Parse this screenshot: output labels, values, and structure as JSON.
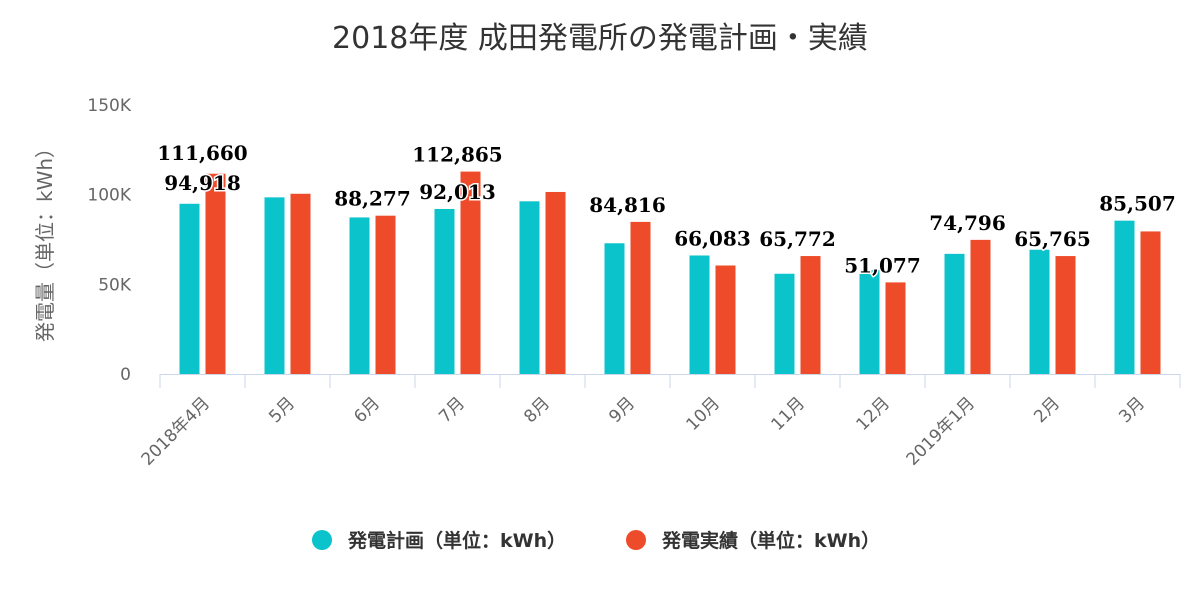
{
  "chart_data": {
    "type": "bar",
    "title": "2018年度 成田発電所の発電計画・実績",
    "xlabel": "",
    "ylabel": "発電量（単位：kWh）",
    "ylim": [
      0,
      150000
    ],
    "yticks": [
      0,
      50000,
      100000,
      150000
    ],
    "ytick_labels": [
      "0",
      "50K",
      "100K",
      "150K"
    ],
    "grid": false,
    "legend_position": "bottom",
    "categories": [
      "2018年4月",
      "5月",
      "6月",
      "7月",
      "8月",
      "9月",
      "10月",
      "11月",
      "12月",
      "2019年1月",
      "2月",
      "3月"
    ],
    "series": [
      {
        "name": "発電計画（単位：kWh）",
        "color": "#0ac3cb",
        "values": [
          94918,
          98500,
          87300,
          92013,
          96300,
          72900,
          66083,
          55900,
          58000,
          67000,
          69300,
          85507
        ]
      },
      {
        "name": "発電実績（単位：kWh）",
        "color": "#ee4b2b",
        "values": [
          111660,
          100500,
          88277,
          112865,
          101500,
          84816,
          60500,
          65772,
          51077,
          74796,
          65765,
          79500
        ]
      }
    ],
    "data_labels": [
      {
        "text": "111,660",
        "category": 0,
        "series": 1
      },
      {
        "text": "94,918",
        "category": 0,
        "series": 0
      },
      {
        "text": "88,277",
        "category": 2,
        "series": 1
      },
      {
        "text": "92,013",
        "category": 3,
        "series": 0
      },
      {
        "text": "112,865",
        "category": 3,
        "series": 1
      },
      {
        "text": "84,816",
        "category": 5,
        "series": 1
      },
      {
        "text": "66,083",
        "category": 6,
        "series": 0
      },
      {
        "text": "65,772",
        "category": 7,
        "series": 1
      },
      {
        "text": "51,077",
        "category": 8,
        "series": 1
      },
      {
        "text": "74,796",
        "category": 9,
        "series": 1
      },
      {
        "text": "65,765",
        "category": 10,
        "series": 1
      },
      {
        "text": "85,507",
        "category": 11,
        "series": 0
      }
    ]
  }
}
